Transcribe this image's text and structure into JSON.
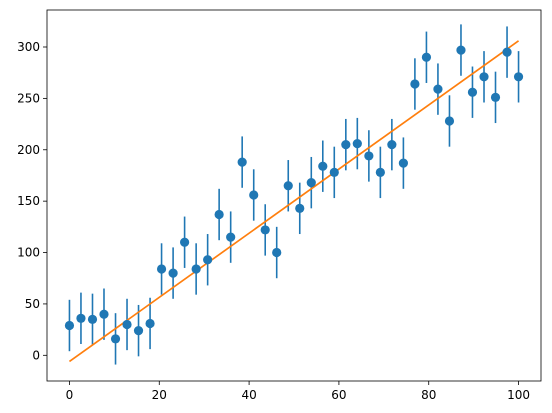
{
  "chart_data": {
    "type": "scatter",
    "title": "",
    "xlabel": "",
    "ylabel": "",
    "xlim": [
      -5,
      105
    ],
    "ylim": [
      -25,
      336
    ],
    "xticks": [
      0,
      20,
      40,
      60,
      80,
      100
    ],
    "yticks": [
      0,
      50,
      100,
      150,
      200,
      250,
      300
    ],
    "grid": false,
    "legend": "none",
    "series": [
      {
        "kind": "errorbar",
        "color": "#1f77b4",
        "x": [
          0.0,
          2.56,
          5.13,
          7.69,
          10.26,
          12.82,
          15.38,
          17.95,
          20.51,
          23.08,
          25.64,
          28.21,
          30.77,
          33.33,
          35.9,
          38.46,
          41.03,
          43.59,
          46.15,
          48.72,
          51.28,
          53.85,
          56.41,
          58.97,
          61.54,
          64.1,
          66.67,
          69.23,
          71.79,
          74.36,
          76.92,
          79.49,
          82.05,
          84.62,
          87.18,
          89.74,
          92.31,
          94.87,
          97.44,
          100.0
        ],
        "y": [
          29,
          36,
          35,
          40,
          16,
          30,
          24,
          31,
          84,
          80,
          110,
          84,
          93,
          137,
          115,
          188,
          156,
          122,
          100,
          165,
          143,
          168,
          184,
          178,
          205,
          206,
          194,
          178,
          205,
          187,
          264,
          290,
          259,
          228,
          297,
          256,
          271,
          251,
          295,
          271
        ],
        "yerr": 25
      },
      {
        "kind": "line",
        "color": "#ff7f0e",
        "x": [
          0,
          100
        ],
        "y": [
          -6,
          306
        ]
      }
    ]
  }
}
